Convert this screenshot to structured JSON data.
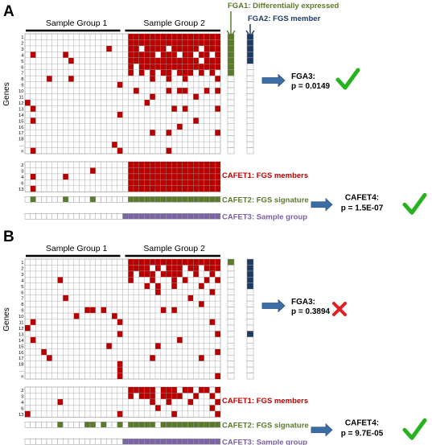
{
  "colors": {
    "red": "#b90000",
    "green": "#5a7a2c",
    "navy": "#1f3b63",
    "purple": "#7b64a3",
    "label_green": "#5b7a2b",
    "label_navy": "#1f3b66",
    "label_red": "#c00000",
    "label_purple": "#7a5fa0",
    "check_green": "#29b21f",
    "cross_red": "#e02020",
    "arrow_blue": "#3c6ea6",
    "grid_line": "#9a9a9a"
  },
  "top_labels": {
    "fga1": "FGA1: Differentially expressed",
    "fga2": "FGA2: FGS member"
  },
  "panels": [
    {
      "letter": "A",
      "group1_label": "Sample Group 1",
      "group2_label": "Sample Group 2",
      "genes_label": "Genes",
      "row_labels": [
        "1",
        "2",
        "3",
        "4",
        "5",
        "6",
        "7",
        "8",
        "9",
        "10",
        "11",
        "12",
        "13",
        "14",
        "15",
        "16",
        "17",
        "18",
        "…",
        "n"
      ],
      "mini_row_labels": [
        "2",
        "3",
        "4",
        "6",
        "13"
      ],
      "rows": [
        "000000000000000000011111111111111111",
        "000000000000000000011111111111111111",
        "000000000000000100011011110111110111",
        "010000010000000000011111011101101101",
        "000000001000000000011111111111110111",
        "000000000000000000010111111111111111",
        "000000000000000000010101011011101010",
        "000010001000000000000001001001000001",
        "000000000000000001000000000000000000",
        "000000000000000000001000001011000101",
        "000000000000000000000001000000010000",
        "100000000000000000000010000000000000",
        "010000000000000000000000000101000001",
        "000000000000000001000000000000000000",
        "010000000000000000000000000000010000",
        "000000000000000000000000000010000000",
        "000000000000000000000001001000000001",
        "000000000000000000000000000000000000",
        "000000000000000010000000000000000000",
        "010000000000000001000000001000000000"
      ],
      "mini_rows": [
        "000000000000000000011111111111111111",
        "000000000000100000011111111111111111",
        "010000010000000000011111111111111111",
        "000000000000000000011111111111111111",
        "010000000000000000011111111111111111"
      ],
      "signature": "010000010000100000011111111111111111",
      "fga1": "11111110000000000000",
      "fga2": "11111000000000000000",
      "fga3": {
        "label": "FGA3:",
        "pvalue": "p = 0.0149",
        "significant": true
      },
      "cafet1_label": "CAFET1: FGS members",
      "cafet2_label": "CAFET2: FGS signature",
      "cafet3_label": "CAFET3: Sample group",
      "cafet4": {
        "label": "CAFET4:",
        "pvalue": "p = 1.5E-07",
        "significant": true
      }
    },
    {
      "letter": "B",
      "group1_label": "Sample Group 1",
      "group2_label": "Sample Group 2",
      "genes_label": "Genes",
      "row_labels": [
        "1",
        "2",
        "3",
        "4",
        "5",
        "6",
        "7",
        "8",
        "9",
        "10",
        "11",
        "12",
        "13",
        "14",
        "15",
        "16",
        "17",
        "18",
        "…",
        "n"
      ],
      "mini_row_labels": [
        "2",
        "3",
        "4",
        "6",
        "13"
      ],
      "rows": [
        "000000000000000000011111111111111111",
        "000000000000000000011110101110110111",
        "000000000000000000010111011110010010",
        "000000100000000000010001000101000101",
        "000000000000000000000010100100001000",
        "000000000000000000000000100000000010",
        "000000010000000000000000000000100000",
        "000000000000000000000000000000001000",
        "000000000001101000000000010100000000",
        "000000000100000010000000000000000000",
        "010000000000000001000000000000000010",
        "100000000000000000000000000000000000",
        "000000000000000001000000000000000001",
        "010000000000000000000000000010000000",
        "000000000000000100000000100000000000",
        "000100000000000000000000000000000001",
        "000010000000000000000001000000001000",
        "000000000000000001000000000000000000",
        "000000000000000001000000000000000000",
        "000000000000000001000000000000000001"
      ],
      "mini_rows": [
        "000000000000000000011111011101101101",
        "000000000000000000010111011110010010",
        "000000100000000000000001001000100001",
        "000000000000000000000000100000000010",
        "100000000000000001000000000100000001"
      ],
      "signature": "000000100001101001011111011111111111",
      "fga1": "10000000000000000000",
      "fga2": "11111000000010000000",
      "fga3": {
        "label": "FGA3:",
        "pvalue": "p = 0.3894",
        "significant": false
      },
      "cafet1_label": "CAFET1: FGS members",
      "cafet2_label": "CAFET2: FGS signature",
      "cafet3_label": "CAFET3: Sample group",
      "cafet4": {
        "label": "CAFET4:",
        "pvalue": "p = 9.7E-05",
        "significant": true
      }
    }
  ]
}
